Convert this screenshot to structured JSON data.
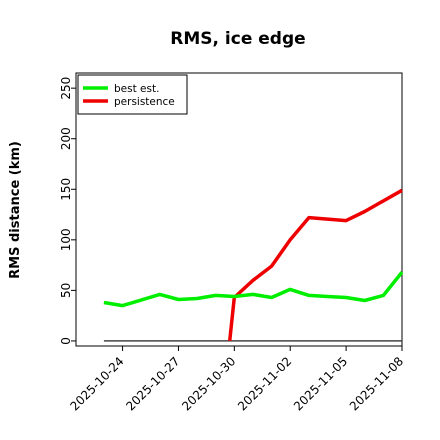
{
  "chart_data": {
    "type": "line",
    "title": "RMS, ice edge",
    "xlabel": "",
    "ylabel": "RMS distance (km)",
    "xlim": [
      "2025-10-21T12:00",
      "2025-11-08"
    ],
    "ylim": [
      -5,
      265
    ],
    "yticks": [
      0,
      50,
      100,
      150,
      200,
      250
    ],
    "xticks": [
      "2025-10-24",
      "2025-10-27",
      "2025-10-30",
      "2025-11-02",
      "2025-11-05",
      "2025-11-08"
    ],
    "grid": false,
    "legend": "top-left",
    "series": [
      {
        "name": "best est.",
        "color": "#00ee00",
        "x": [
          "2025-10-23",
          "2025-10-24",
          "2025-10-26",
          "2025-10-27",
          "2025-10-28",
          "2025-10-29",
          "2025-10-30",
          "2025-10-31",
          "2025-11-01",
          "2025-11-02",
          "2025-11-03",
          "2025-11-04",
          "2025-11-05",
          "2025-11-06",
          "2025-11-07",
          "2025-11-08"
        ],
        "values": [
          38,
          35,
          46,
          41,
          42,
          45,
          44,
          46,
          43,
          51,
          45,
          44,
          43,
          40,
          45,
          68
        ]
      },
      {
        "name": "persistence",
        "color": "#ee0000",
        "x": [
          "2025-10-29T18:00",
          "2025-10-30",
          "2025-10-31",
          "2025-11-01",
          "2025-11-02",
          "2025-11-03",
          "2025-11-05",
          "2025-11-06",
          "2025-11-08"
        ],
        "values": [
          0,
          43,
          60,
          74,
          100,
          122,
          119,
          128,
          149
        ]
      },
      {
        "name": "",
        "color": "#444444",
        "x": [
          "2025-10-23",
          "2025-11-08"
        ],
        "values": [
          0,
          0
        ]
      }
    ]
  }
}
